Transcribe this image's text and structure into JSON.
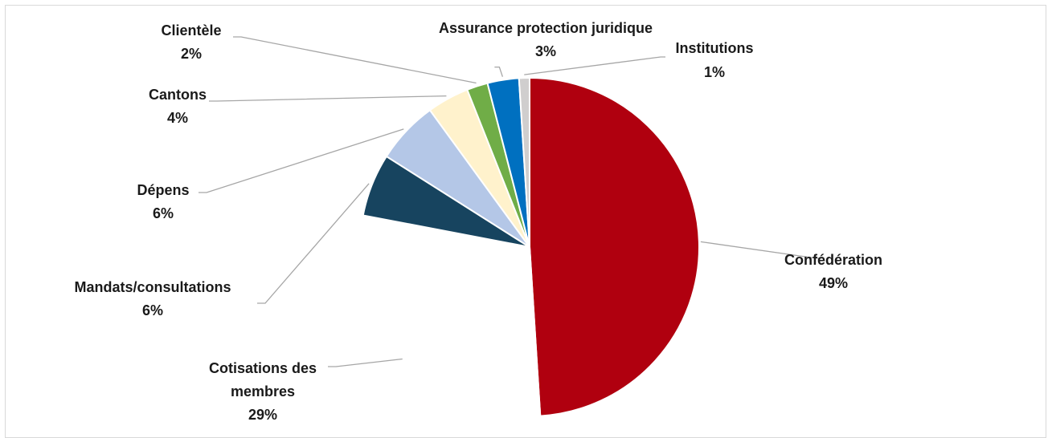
{
  "chart_data": {
    "type": "pie",
    "title": "",
    "legend": "none",
    "data_labels": "category-and-percent",
    "slices": [
      {
        "label": "Confédération",
        "percent_label": "49%",
        "value": 49,
        "color": "#B0000F"
      },
      {
        "label": "Cotisations des membres",
        "label_lines": [
          "Cotisations des",
          "membres"
        ],
        "percent_label": "29%",
        "value": 29,
        "color": "#FFFFFF"
      },
      {
        "label": "Mandats/consultations",
        "percent_label": "6%",
        "value": 6,
        "color": "#17445F"
      },
      {
        "label": "Dépens",
        "percent_label": "6%",
        "value": 6,
        "color": "#B4C7E7"
      },
      {
        "label": "Cantons",
        "percent_label": "4%",
        "value": 4,
        "color": "#FFF2CC"
      },
      {
        "label": "Clientèle",
        "percent_label": "2%",
        "value": 2,
        "color": "#70AD47"
      },
      {
        "label": "Assurance protection juridique",
        "percent_label": "3%",
        "value": 3,
        "color": "#0070C0"
      },
      {
        "label": "Institutions",
        "percent_label": "1%",
        "value": 1,
        "color": "#D0CECE"
      }
    ]
  }
}
